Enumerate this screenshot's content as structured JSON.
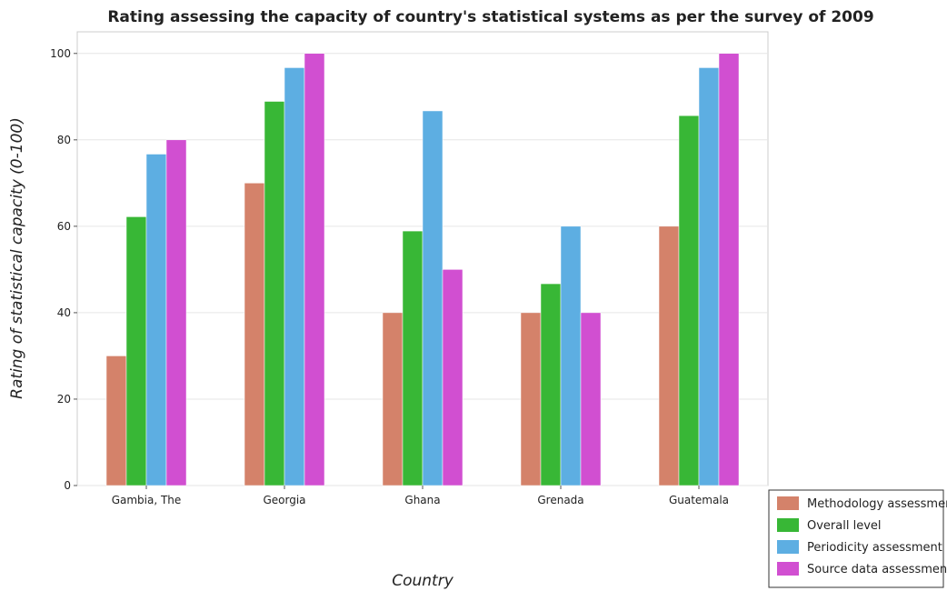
{
  "chart_data": {
    "type": "bar",
    "title": "Rating assessing the capacity of country's statistical systems as per the survey of 2009",
    "xlabel": "Country",
    "ylabel": "Rating of statistical capacity (0-100)",
    "ylim": [
      0,
      105
    ],
    "yticks": [
      0,
      20,
      40,
      60,
      80,
      100
    ],
    "categories": [
      "Gambia, The",
      "Georgia",
      "Ghana",
      "Grenada",
      "Guatemala"
    ],
    "series": [
      {
        "name": "Methodology assessment",
        "color": "#d4826a",
        "values": [
          30,
          70,
          40,
          40,
          60
        ]
      },
      {
        "name": "Overall level",
        "color": "#38b736",
        "values": [
          62.2,
          88.9,
          58.9,
          46.7,
          85.6
        ]
      },
      {
        "name": "Periodicity assessment",
        "color": "#5daee2",
        "values": [
          76.7,
          96.7,
          86.7,
          60,
          96.7
        ]
      },
      {
        "name": "Source data assessment",
        "color": "#d14fd1",
        "values": [
          80,
          100,
          50,
          40,
          100
        ]
      }
    ],
    "legend_position": "bottom-right",
    "grid": true
  }
}
